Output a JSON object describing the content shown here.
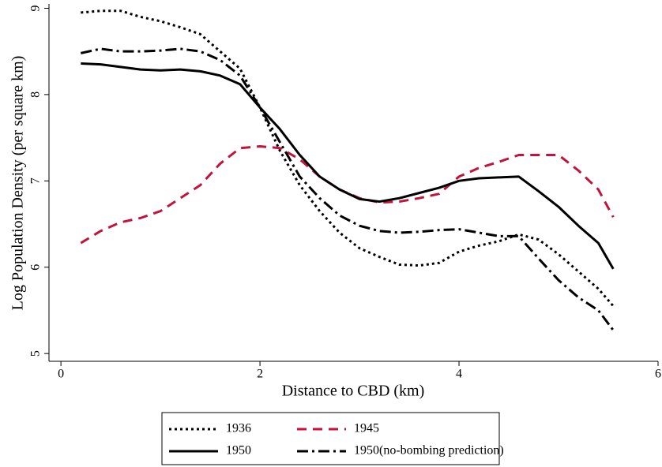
{
  "chart_data": {
    "type": "line",
    "xlabel": "Distance to CBD (km)",
    "ylabel": "Log Population Density (per square km)",
    "xlim": [
      -0.12,
      6.0
    ],
    "ylim": [
      4.91,
      9.05
    ],
    "xticks": [
      0,
      2,
      4,
      6
    ],
    "yticks": [
      5,
      6,
      7,
      8,
      9
    ],
    "legend": "bottom",
    "x": [
      0.2,
      0.4,
      0.6,
      0.8,
      1.0,
      1.2,
      1.4,
      1.6,
      1.8,
      2.0,
      2.2,
      2.4,
      2.6,
      2.8,
      3.0,
      3.2,
      3.4,
      3.6,
      3.8,
      4.0,
      4.2,
      4.4,
      4.6,
      4.8,
      5.0,
      5.2,
      5.4,
      5.55
    ],
    "series": [
      {
        "name": "1936",
        "color": "#000000",
        "dash": "dot",
        "values": [
          8.95,
          8.97,
          8.97,
          8.9,
          8.85,
          8.78,
          8.7,
          8.5,
          8.3,
          7.85,
          7.35,
          6.95,
          6.65,
          6.4,
          6.22,
          6.12,
          6.03,
          6.02,
          6.05,
          6.18,
          6.25,
          6.3,
          6.38,
          6.32,
          6.15,
          5.95,
          5.75,
          5.55
        ]
      },
      {
        "name": "1945",
        "color": "#c0143c",
        "dash": "dash",
        "values": [
          6.28,
          6.42,
          6.52,
          6.57,
          6.65,
          6.8,
          6.95,
          7.2,
          7.38,
          7.4,
          7.38,
          7.25,
          7.05,
          6.9,
          6.8,
          6.75,
          6.76,
          6.8,
          6.85,
          7.05,
          7.15,
          7.22,
          7.3,
          7.3,
          7.3,
          7.12,
          6.9,
          6.58
        ]
      },
      {
        "name": "1950",
        "color": "#000000",
        "dash": "solid",
        "values": [
          8.36,
          8.35,
          8.32,
          8.29,
          8.28,
          8.29,
          8.27,
          8.22,
          8.12,
          7.85,
          7.6,
          7.3,
          7.05,
          6.9,
          6.79,
          6.76,
          6.8,
          6.86,
          6.92,
          7.0,
          7.03,
          7.04,
          7.05,
          6.88,
          6.7,
          6.48,
          6.28,
          5.98
        ]
      },
      {
        "name": "1950(no-bombing prediction)",
        "color": "#000000",
        "dash": "dashdot",
        "values": [
          8.48,
          8.53,
          8.5,
          8.5,
          8.51,
          8.53,
          8.5,
          8.4,
          8.22,
          7.85,
          7.45,
          7.05,
          6.8,
          6.6,
          6.48,
          6.42,
          6.4,
          6.41,
          6.43,
          6.44,
          6.4,
          6.36,
          6.36,
          6.1,
          5.85,
          5.65,
          5.5,
          5.27
        ]
      }
    ]
  }
}
